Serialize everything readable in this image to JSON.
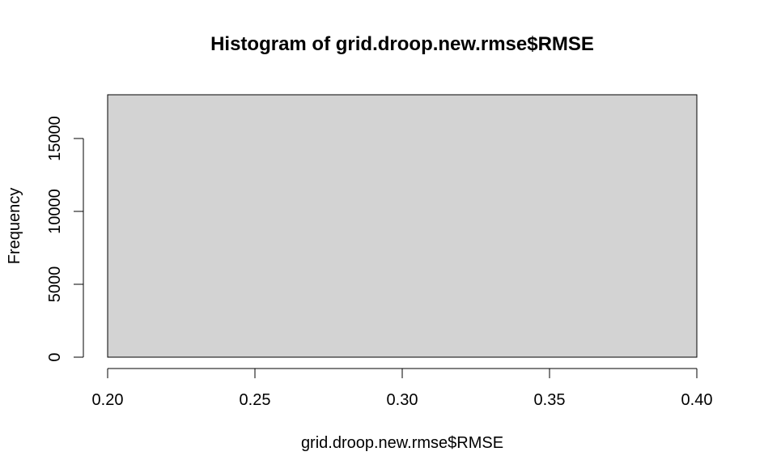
{
  "chart_data": {
    "type": "bar",
    "title": "Histogram of grid.droop.new.rmse$RMSE",
    "xlabel": "grid.droop.new.rmse$RMSE",
    "ylabel": "Frequency",
    "bins": [
      {
        "x0": 0.2,
        "x1": 0.4,
        "count": 18000
      }
    ],
    "xlim": [
      0.2,
      0.4
    ],
    "ylim": [
      0,
      18000
    ],
    "x_ticks": [
      "0.20",
      "0.25",
      "0.30",
      "0.35",
      "0.40"
    ],
    "x_tick_values": [
      0.2,
      0.25,
      0.3,
      0.35,
      0.4
    ],
    "y_ticks": [
      "0",
      "5000",
      "10000",
      "15000"
    ],
    "y_tick_values": [
      0,
      5000,
      10000,
      15000
    ],
    "bar_fill": "#d3d3d3",
    "bar_stroke": "#000000",
    "grid": false,
    "legend": "none"
  }
}
